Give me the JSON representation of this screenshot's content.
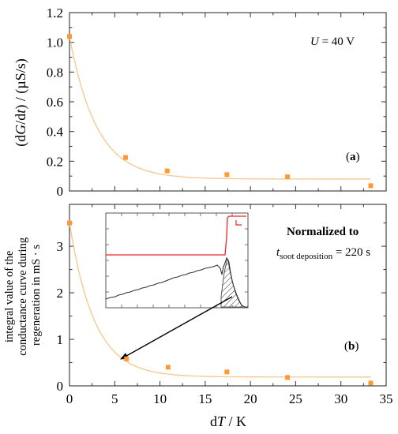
{
  "colors": {
    "marker": "#FF9933",
    "fit_curve": "#F9C58C",
    "inset_red": "#E8262B",
    "inset_black": "#333333",
    "arrow": "#000000"
  },
  "chart_data": [
    {
      "panel": "(a)",
      "type": "scatter",
      "ylabel": "(dG/dt) / (µS/s)",
      "ylabel_parts": {
        "p1": "(d",
        "p2": "G",
        "p3": "/d",
        "p4": "t",
        "p5": ") / (µS/s)"
      },
      "xlim": [
        0,
        35
      ],
      "ylim": [
        0,
        1.2
      ],
      "yticks": [
        0,
        0.2,
        0.4,
        0.6,
        0.8,
        1.0,
        1.2
      ],
      "ytick_labels": [
        "0",
        "0.2",
        "0.4",
        "0.6",
        "0.8",
        "1.0",
        "1.2"
      ],
      "annotation": {
        "sym": "U",
        "rest": " = 40 V"
      },
      "label_open": "(",
      "label_letter": "a",
      "label_close": ")",
      "points": [
        {
          "x": 0,
          "y": 1.04
        },
        {
          "x": 6.2,
          "y": 0.225
        },
        {
          "x": 10.8,
          "y": 0.135
        },
        {
          "x": 17.4,
          "y": 0.11
        },
        {
          "x": 24.1,
          "y": 0.095
        },
        {
          "x": 33.3,
          "y": 0.035
        }
      ],
      "fit": {
        "y0": 0.08,
        "A": 0.96,
        "tau": 3.0
      }
    },
    {
      "panel": "(b)",
      "type": "scatter",
      "ylabel_lines": [
        "integral value of the",
        "conductance curve during",
        "regeneration in mS · s"
      ],
      "xlabel_parts": {
        "p1": "d",
        "p2": "T",
        "p3": " / K"
      },
      "xlim": [
        0,
        35
      ],
      "ylim": [
        0,
        3.9
      ],
      "xticks": [
        0,
        5,
        10,
        15,
        20,
        25,
        30,
        35
      ],
      "xtick_labels": [
        "0",
        "5",
        "10",
        "15",
        "20",
        "25",
        "30",
        "35"
      ],
      "yticks": [
        0,
        1,
        2,
        3
      ],
      "ytick_labels": [
        "0",
        "1",
        "2",
        "3"
      ],
      "annotation_line1": "Normalized to",
      "annotation_line2": {
        "sym": "t",
        "sub": "soot deposition",
        "rest": " = 220 s"
      },
      "label_open": "(",
      "label_letter": "b",
      "label_close": ")",
      "points": [
        {
          "x": 0,
          "y": 3.5
        },
        {
          "x": 6.3,
          "y": 0.58
        },
        {
          "x": 10.9,
          "y": 0.4
        },
        {
          "x": 17.4,
          "y": 0.3
        },
        {
          "x": 24.1,
          "y": 0.18
        },
        {
          "x": 33.3,
          "y": 0.06
        }
      ],
      "fit": {
        "y0": 0.19,
        "A": 3.31,
        "tau": 2.75
      }
    }
  ]
}
